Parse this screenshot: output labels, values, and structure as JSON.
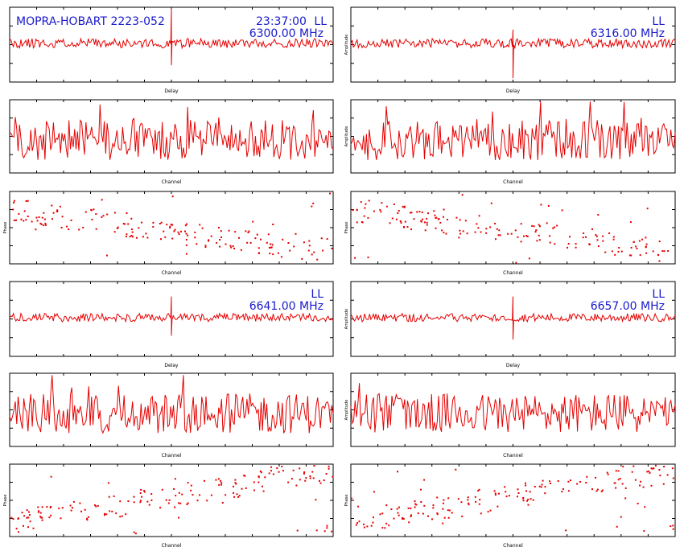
{
  "colors": {
    "trace": "#e60000",
    "frame": "#000000",
    "label": "#1a1acc"
  },
  "header": {
    "source": "MOPRA-HOBART 2223-052",
    "time": "23:37:00",
    "pol": "LL",
    "freqs": [
      "6300.00 MHz",
      "6316.00 MHz",
      "6641.00 MHz",
      "6657.00 MHz"
    ]
  },
  "chart_data": [
    {
      "type": "line",
      "band": "6300.00 MHz",
      "xlabel": "Delay",
      "ylabel": "",
      "xlim": [
        -200,
        200
      ],
      "ylim": [
        -4,
        4
      ],
      "seed": 11,
      "spike": {
        "x": 0,
        "y": [
          -2.2,
          3.8
        ]
      },
      "noise": 0.25
    },
    {
      "type": "line",
      "band": "6316.00 MHz",
      "xlabel": "Delay",
      "ylabel": "Amplitude",
      "xlim": [
        -200,
        200
      ],
      "ylim": [
        -4,
        4
      ],
      "seed": 12,
      "spike": {
        "x": 0,
        "y": [
          -3.6,
          1.6
        ]
      },
      "noise": 0.25
    },
    {
      "type": "line",
      "band": "6300.00 MHz",
      "xlabel": "Channel",
      "ylabel": "",
      "xlim": [
        0,
        256
      ],
      "ylim": [
        0,
        4
      ],
      "seed": 13
    },
    {
      "type": "line",
      "band": "6316.00 MHz",
      "xlabel": "Channel",
      "ylabel": "Amplitude",
      "xlim": [
        0,
        256
      ],
      "ylim": [
        0,
        4
      ],
      "seed": 14
    },
    {
      "type": "scatter",
      "band": "6300.00 MHz",
      "xlabel": "Channel",
      "ylabel": "Phase",
      "xlim": [
        0,
        256
      ],
      "ylim": [
        -180,
        180
      ],
      "seed": 15,
      "trend": -1
    },
    {
      "type": "scatter",
      "band": "6316.00 MHz",
      "xlabel": "Channel",
      "ylabel": "Phase",
      "xlim": [
        0,
        256
      ],
      "ylim": [
        -180,
        180
      ],
      "seed": 16,
      "trend": -1
    },
    {
      "type": "line",
      "band": "6641.00 MHz",
      "xlabel": "Delay",
      "ylabel": "",
      "xlim": [
        -200,
        200
      ],
      "ylim": [
        -4,
        4
      ],
      "seed": 21,
      "spike": {
        "x": 0,
        "y": [
          -1.8,
          2.4
        ]
      },
      "noise": 0.22
    },
    {
      "type": "line",
      "band": "6657.00 MHz",
      "xlabel": "Delay",
      "ylabel": "Amplitude",
      "xlim": [
        -200,
        200
      ],
      "ylim": [
        -4,
        4
      ],
      "seed": 22,
      "spike": {
        "x": 0,
        "y": [
          -2.2,
          2.4
        ]
      },
      "noise": 0.22
    },
    {
      "type": "line",
      "band": "6641.00 MHz",
      "xlabel": "Channel",
      "ylabel": "",
      "xlim": [
        0,
        256
      ],
      "ylim": [
        0,
        4
      ],
      "seed": 23
    },
    {
      "type": "line",
      "band": "6657.00 MHz",
      "xlabel": "Channel",
      "ylabel": "Amplitude",
      "xlim": [
        0,
        256
      ],
      "ylim": [
        0,
        4
      ],
      "seed": 24
    },
    {
      "type": "scatter",
      "band": "6641.00 MHz",
      "xlabel": "Channel",
      "ylabel": "Phase",
      "xlim": [
        0,
        256
      ],
      "ylim": [
        -180,
        180
      ],
      "seed": 25,
      "trend": 1
    },
    {
      "type": "scatter",
      "band": "6657.00 MHz",
      "xlabel": "Channel",
      "ylabel": "Phase",
      "xlim": [
        0,
        256
      ],
      "ylim": [
        -180,
        180
      ],
      "seed": 26,
      "trend": 1
    }
  ]
}
